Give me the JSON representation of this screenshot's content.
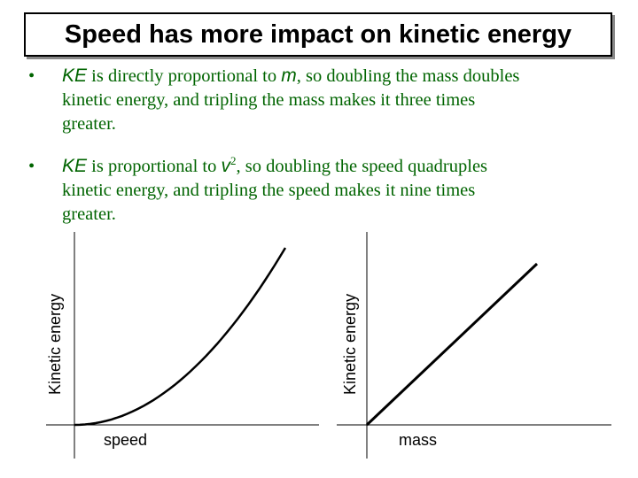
{
  "slide": {
    "title": "Speed has more impact on kinetic energy"
  },
  "bullets": [
    {
      "marker": "•",
      "sym": "KE",
      "text_a": " is directly proportional to ",
      "var": "m",
      "text_b": ", so doubling the mass doubles",
      "line2": "kinetic energy, and tripling the mass makes it three times",
      "line3": "greater."
    },
    {
      "marker": "•",
      "sym": "KE",
      "text_a": " is proportional to ",
      "var": "v",
      "sup": "2",
      "text_b": ", so doubling the speed quadruples",
      "line2": "kinetic energy, and tripling the speed makes it nine times",
      "line3": "greater."
    }
  ],
  "colors": {
    "bullet_text": "#006400",
    "axis": "#000000",
    "curve": "#000000"
  },
  "chart_data": [
    {
      "type": "line",
      "title": "",
      "xlabel": "speed",
      "ylabel": "Kinetic energy",
      "relationship": "KE proportional to v^2",
      "x": [
        0,
        0.2,
        0.4,
        0.6,
        0.8,
        1.0
      ],
      "values": [
        0,
        0.04,
        0.16,
        0.36,
        0.64,
        1.0
      ],
      "xlim": [
        0,
        1
      ],
      "ylim": [
        0,
        1.1
      ],
      "grid": false
    },
    {
      "type": "line",
      "title": "",
      "xlabel": "mass",
      "ylabel": "Kinetic energy",
      "relationship": "KE proportional to m",
      "x": [
        0,
        1.0
      ],
      "values": [
        0,
        0.9
      ],
      "xlim": [
        0,
        1
      ],
      "ylim": [
        0,
        1.1
      ],
      "grid": false
    }
  ]
}
